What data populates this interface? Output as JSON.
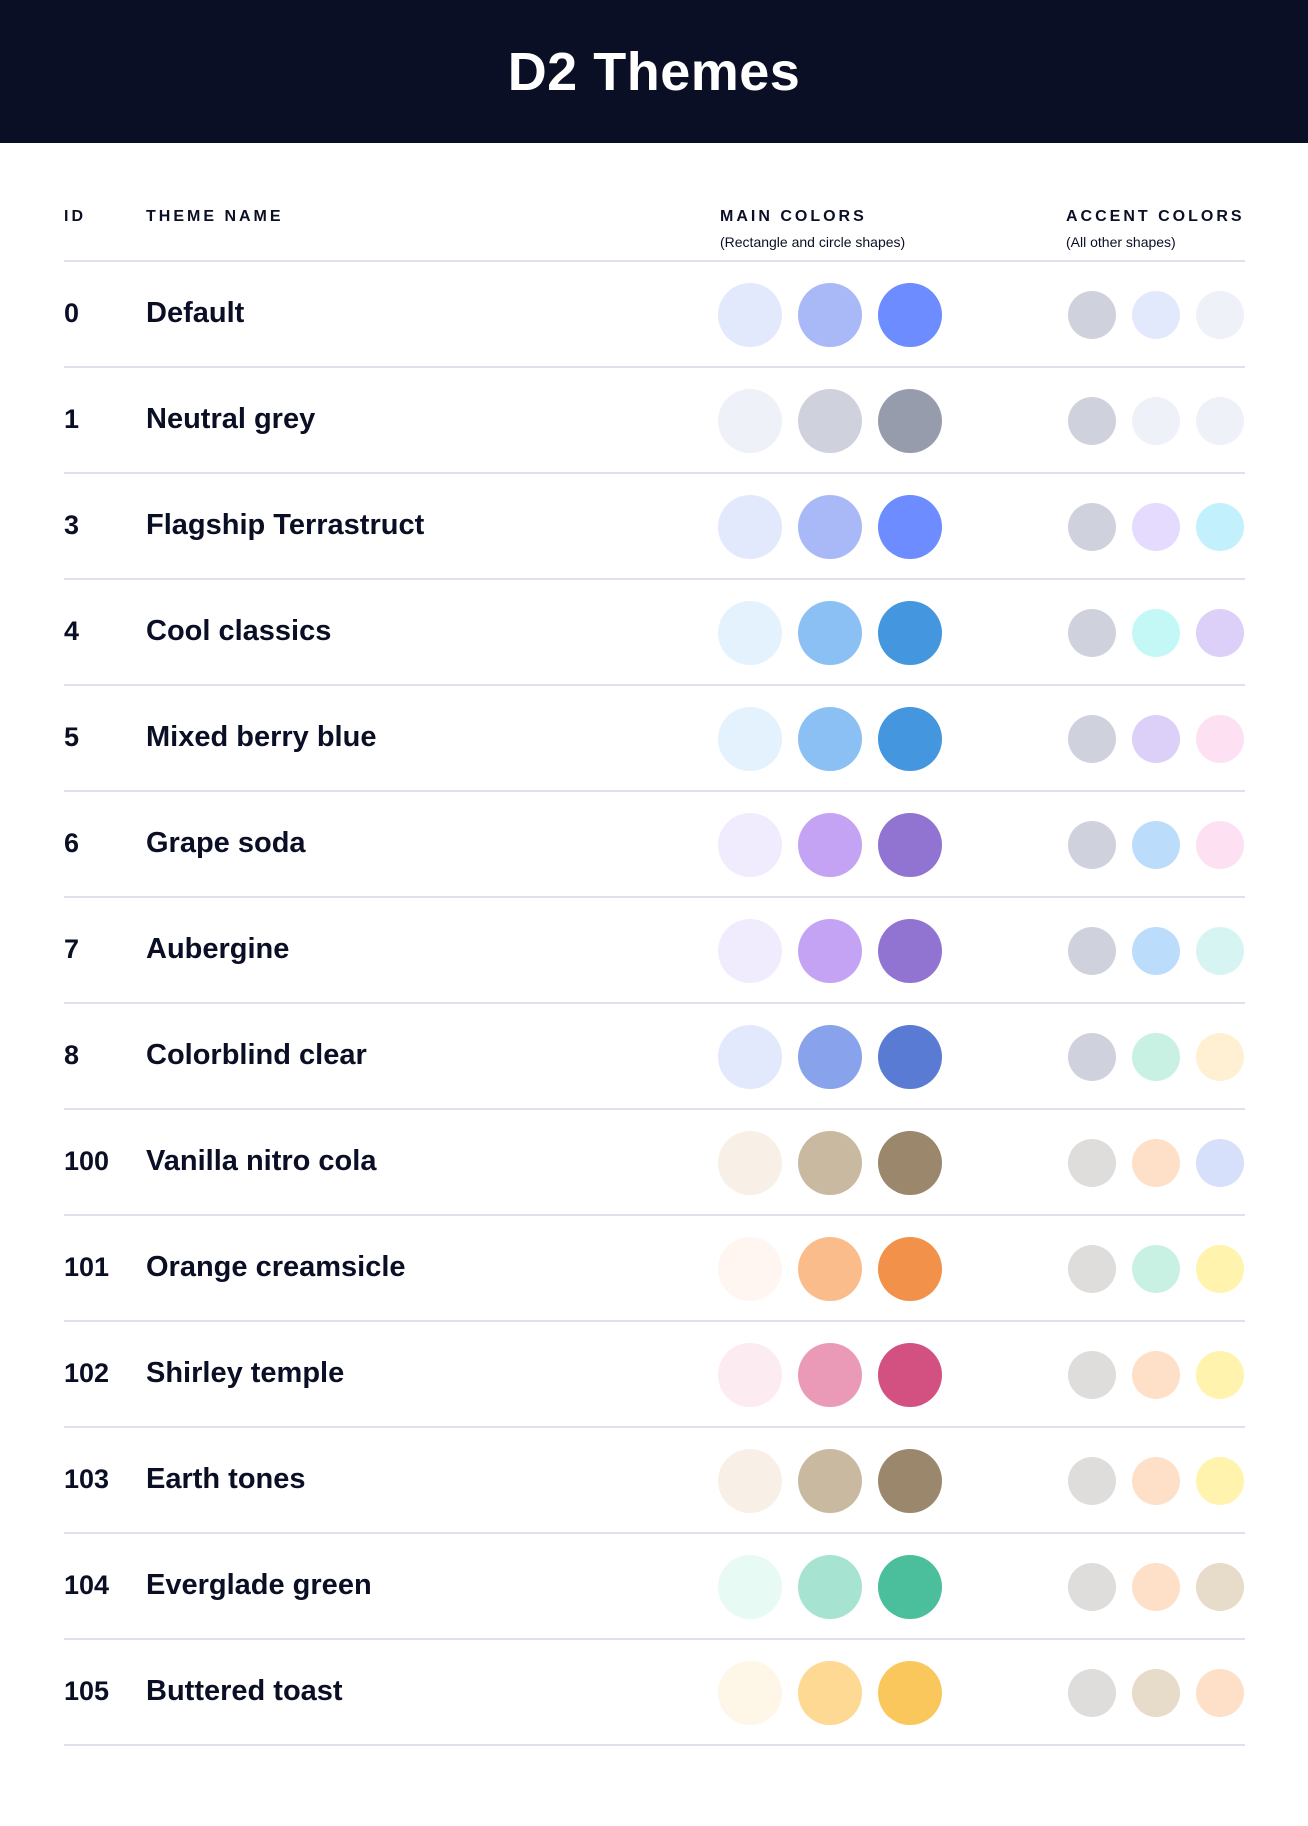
{
  "title": "D2 Themes",
  "columns": {
    "id": "ID",
    "name": "THEME NAME",
    "main": "MAIN COLORS",
    "main_sub": "(Rectangle and circle shapes)",
    "accent": "ACCENT COLORS",
    "accent_sub": "(All other shapes)"
  },
  "themes": [
    {
      "id": "0",
      "name": "Default",
      "main": [
        "#e3e9fd",
        "#a9b9f8",
        "#6c8cff"
      ],
      "accent": [
        "#cfd2dd",
        "#e3e9fd",
        "#eef1f8"
      ]
    },
    {
      "id": "1",
      "name": "Neutral grey",
      "main": [
        "#eef1f8",
        "#cfd2dd",
        "#979cad"
      ],
      "accent": [
        "#cfd2dd",
        "#eef1f8",
        "#eef1f8"
      ]
    },
    {
      "id": "3",
      "name": "Flagship Terrastruct",
      "main": [
        "#e3e9fd",
        "#a9b9f8",
        "#6c8cff"
      ],
      "accent": [
        "#cfd2dd",
        "#e4dbfe",
        "#c3f0fd"
      ]
    },
    {
      "id": "4",
      "name": "Cool classics",
      "main": [
        "#e3f2fd",
        "#8bc0f5",
        "#4496de"
      ],
      "accent": [
        "#cfd2dd",
        "#c3f8f7",
        "#dccff8"
      ]
    },
    {
      "id": "5",
      "name": "Mixed berry blue",
      "main": [
        "#e3f2fd",
        "#8bc0f5",
        "#4496de"
      ],
      "accent": [
        "#cfd2dd",
        "#dccff8",
        "#fde0f1"
      ]
    },
    {
      "id": "6",
      "name": "Grape soda",
      "main": [
        "#f0ecfd",
        "#c4a3f4",
        "#9174d2"
      ],
      "accent": [
        "#cfd2dd",
        "#bcdcfb",
        "#fde0f1"
      ]
    },
    {
      "id": "7",
      "name": "Aubergine",
      "main": [
        "#f0ecfd",
        "#c4a3f4",
        "#9174d2"
      ],
      "accent": [
        "#cfd2dd",
        "#bcdcfb",
        "#d6f4f1"
      ]
    },
    {
      "id": "8",
      "name": "Colorblind clear",
      "main": [
        "#e3e9fd",
        "#88a2ec",
        "#5a7bd4"
      ],
      "accent": [
        "#cfd2dd",
        "#c9f1e3",
        "#fff0d4"
      ]
    },
    {
      "id": "100",
      "name": "Vanilla nitro cola",
      "main": [
        "#f8f0e6",
        "#c9b9a0",
        "#9b876b"
      ],
      "accent": [
        "#dedddb",
        "#fee0c8",
        "#d6e0fa"
      ]
    },
    {
      "id": "101",
      "name": "Orange creamsicle",
      "main": [
        "#fff6f1",
        "#fbbc8b",
        "#f1914a"
      ],
      "accent": [
        "#dedddb",
        "#c9f1e3",
        "#fff3ad"
      ]
    },
    {
      "id": "102",
      "name": "Shirley temple",
      "main": [
        "#fcebf1",
        "#ea9ab7",
        "#d35180"
      ],
      "accent": [
        "#dedddb",
        "#fee0c8",
        "#fff3ad"
      ]
    },
    {
      "id": "103",
      "name": "Earth tones",
      "main": [
        "#f8f0e6",
        "#c9b9a0",
        "#9b876b"
      ],
      "accent": [
        "#dedddb",
        "#fee0c8",
        "#fff3ad"
      ]
    },
    {
      "id": "104",
      "name": "Everglade green",
      "main": [
        "#e7faf3",
        "#a6e3d0",
        "#4bbe9b"
      ],
      "accent": [
        "#dedddb",
        "#fee0c8",
        "#e7dbc9"
      ]
    },
    {
      "id": "105",
      "name": "Buttered toast",
      "main": [
        "#fef7e8",
        "#fed993",
        "#fac75c"
      ],
      "accent": [
        "#dedddb",
        "#e7dbc9",
        "#fee0c8"
      ]
    }
  ]
}
